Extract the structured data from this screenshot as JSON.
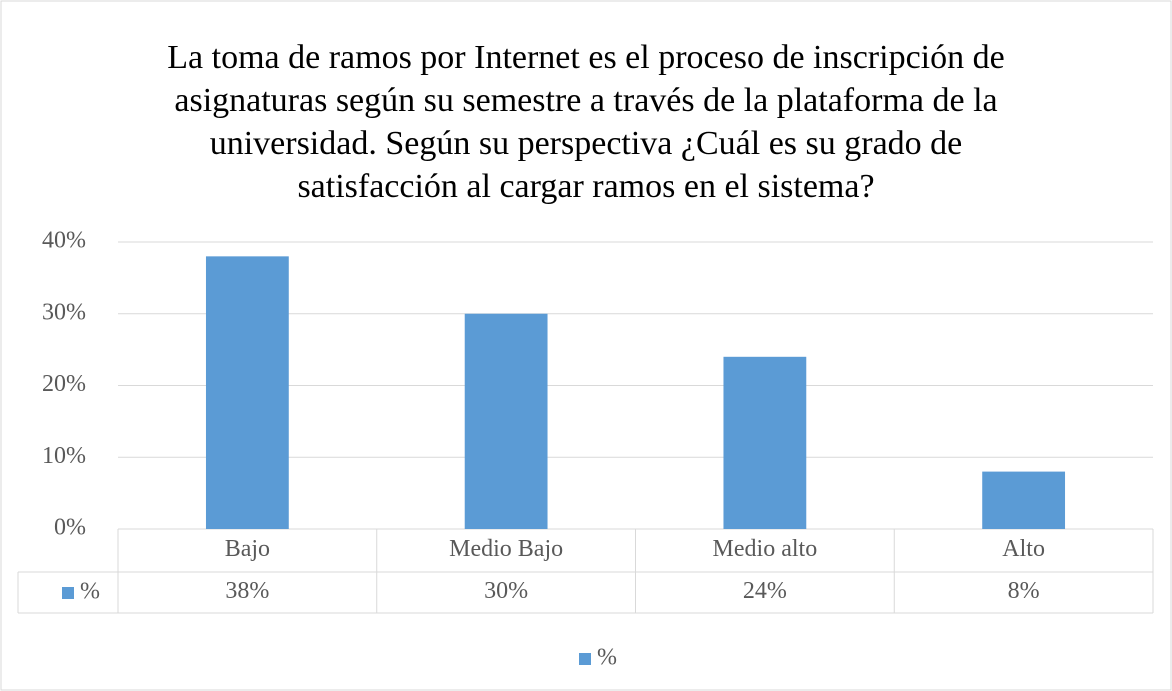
{
  "chart_data": {
    "type": "bar",
    "title": "La toma de ramos por Internet es el proceso de inscripción de asignaturas según su semestre a través de la plataforma de la universidad. Según su perspectiva ¿Cuál es su grado de satisfacción al cargar ramos en el sistema?",
    "categories": [
      "Bajo",
      "Medio Bajo",
      "Medio alto",
      "Alto"
    ],
    "series": [
      {
        "name": "%",
        "color": "#5b9bd5",
        "values": [
          38,
          30,
          24,
          8
        ],
        "value_labels": [
          "38%",
          "30%",
          "24%",
          "8%"
        ]
      }
    ],
    "ylim": [
      0,
      40
    ],
    "yticks": [
      {
        "value": 0,
        "label": "0%"
      },
      {
        "value": 10,
        "label": "10%"
      },
      {
        "value": 20,
        "label": "20%"
      },
      {
        "value": 30,
        "label": "30%"
      },
      {
        "value": 40,
        "label": "40%"
      }
    ],
    "grid": true,
    "legend": "bottom",
    "data_table": true
  }
}
